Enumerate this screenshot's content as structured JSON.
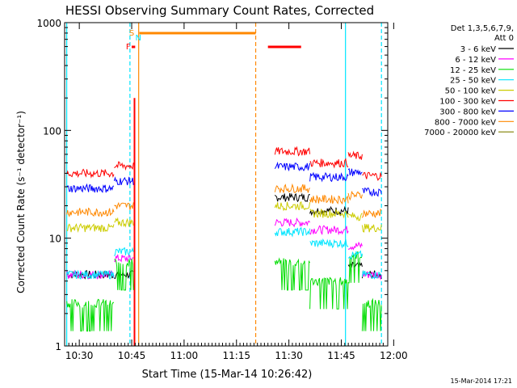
{
  "chart_data": {
    "type": "line",
    "title": "HESSI Observing Summary Count Rates, Corrected",
    "xlabel": "Start Time (15-Mar-14 10:26:42)",
    "ylabel": "Corrected Count Rate (s⁻¹ detector⁻¹)",
    "yscale": "log",
    "ylim": [
      1,
      1000
    ],
    "xlim_minutes": [
      -4.2,
      88.3
    ],
    "x_ticks": [
      "10:30",
      "10:45",
      "11:00",
      "11:15",
      "11:30",
      "11:45",
      "12:00"
    ],
    "y_ticks": [
      "1",
      "10",
      "100",
      "1000"
    ],
    "legend_header": [
      "Det 1,3,5,6,7,9,",
      "Att 0"
    ],
    "legend_position": "right",
    "series": [
      {
        "name": "3 - 6 keV",
        "color": "#000000",
        "levels": [
          4.6,
          4.6,
          24,
          18,
          5.5,
          4.6
        ]
      },
      {
        "name": "6 - 12 keV",
        "color": "#ff00ff",
        "levels": [
          4.6,
          6.5,
          14,
          12,
          8.5,
          4.6
        ]
      },
      {
        "name": "12 - 25 keV",
        "color": "#00dd00",
        "levels": [
          2.5,
          6,
          6,
          4,
          7,
          2.5
        ]
      },
      {
        "name": "25 - 50 keV",
        "color": "#00e5ff",
        "levels": [
          4.6,
          7.5,
          11.5,
          9,
          7,
          4.6
        ]
      },
      {
        "name": "50 - 100 keV",
        "color": "#cccc00",
        "levels": [
          12.5,
          14,
          20,
          17,
          16,
          12.5
        ]
      },
      {
        "name": "100 - 300 keV",
        "color": "#ff0000",
        "levels": [
          40,
          47,
          64,
          50,
          58,
          38
        ]
      },
      {
        "name": "300 - 800 keV",
        "color": "#0000ff",
        "levels": [
          29,
          34,
          46,
          37,
          41,
          27
        ]
      },
      {
        "name": "800 - 7000 keV",
        "color": "#ff8800",
        "levels": [
          17.5,
          20,
          29,
          23,
          25,
          17
        ]
      },
      {
        "name": "7000 - 20000 keV",
        "color": "#808000",
        "levels": []
      }
    ],
    "flags": [
      {
        "label": "S",
        "color": "#ff8800"
      },
      {
        "label": "N",
        "color": "#00e5ff"
      },
      {
        "label": "F",
        "color": "#ff0000"
      }
    ]
  },
  "timestamp": "15-Mar-2014 17:21"
}
